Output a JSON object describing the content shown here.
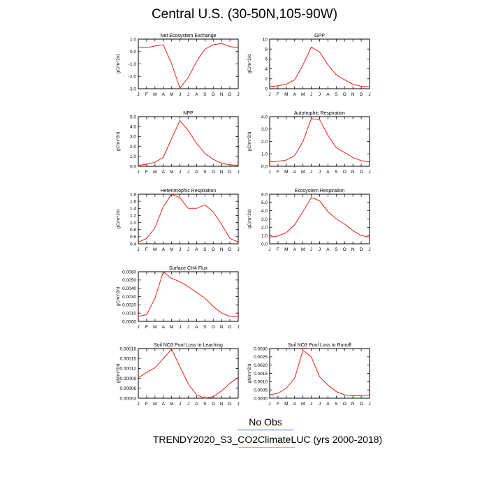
{
  "page": {
    "title": "Central U.S. (30-50N,105-90W)",
    "legend": {
      "obs_label": "No Obs",
      "model_label": "TRENDY2020_S3_CO2ClimateLUC (yrs 2000-2018)",
      "obs_color": "#3d63c7",
      "model_color": "#e8a0a0"
    }
  },
  "chart_data": [
    {
      "type": "line",
      "title": "Net Ecosystem Exchange",
      "ylabel": "gC/m^2/d",
      "x": [
        "J",
        "F",
        "M",
        "A",
        "M",
        "J",
        "J",
        "A",
        "S",
        "O",
        "N",
        "D",
        "J"
      ],
      "ylim": [
        -3.0,
        1.0
      ],
      "yticks": [
        "1.0",
        "0.0",
        "-1.0",
        "-2.0",
        "-3.0"
      ],
      "ytick_values": [
        1.0,
        0.0,
        -1.0,
        -2.0,
        -3.0
      ],
      "series": [
        {
          "color": "#e8201c",
          "values": [
            0.3,
            0.3,
            0.45,
            0.55,
            -1.0,
            -2.95,
            -2.1,
            -0.8,
            0.2,
            0.55,
            0.65,
            0.4,
            0.3
          ]
        }
      ]
    },
    {
      "type": "line",
      "title": "GPP",
      "ylabel": "gC/m^2/d",
      "x": [
        "J",
        "F",
        "M",
        "A",
        "M",
        "J",
        "J",
        "A",
        "S",
        "O",
        "N",
        "D",
        "J"
      ],
      "ylim": [
        0,
        10
      ],
      "yticks": [
        "10",
        "8",
        "6",
        "4",
        "2",
        "0"
      ],
      "ytick_values": [
        10,
        8,
        6,
        4,
        2,
        0
      ],
      "series": [
        {
          "color": "#e8201c",
          "values": [
            0.4,
            0.6,
            0.9,
            1.8,
            4.8,
            8.4,
            7.4,
            4.8,
            2.8,
            1.8,
            0.9,
            0.5,
            0.4
          ]
        }
      ]
    },
    {
      "type": "line",
      "title": "NPP",
      "ylabel": "gC/m^2/d",
      "x": [
        "J",
        "F",
        "M",
        "A",
        "M",
        "J",
        "J",
        "A",
        "S",
        "O",
        "N",
        "D",
        "J"
      ],
      "ylim": [
        0.0,
        5.0
      ],
      "yticks": [
        "5.0",
        "4.0",
        "3.0",
        "2.0",
        "1.0",
        "0.0"
      ],
      "ytick_values": [
        5.0,
        4.0,
        3.0,
        2.0,
        1.0,
        0.0
      ],
      "series": [
        {
          "color": "#e8201c",
          "values": [
            0.1,
            0.2,
            0.4,
            0.9,
            2.8,
            4.6,
            3.6,
            2.3,
            1.3,
            0.7,
            0.3,
            0.15,
            0.1
          ]
        }
      ]
    },
    {
      "type": "line",
      "title": "Autotrophic Respiration",
      "ylabel": "gC/m^2/d",
      "x": [
        "J",
        "F",
        "M",
        "A",
        "M",
        "J",
        "J",
        "A",
        "S",
        "O",
        "N",
        "D",
        "J"
      ],
      "ylim": [
        0.0,
        4.0
      ],
      "yticks": [
        "4.0",
        "3.0",
        "2.0",
        "1.0",
        "0.0"
      ],
      "ytick_values": [
        4.0,
        3.0,
        2.0,
        1.0,
        0.0
      ],
      "series": [
        {
          "color": "#e8201c",
          "values": [
            0.35,
            0.4,
            0.5,
            0.85,
            2.0,
            3.85,
            3.75,
            2.5,
            1.5,
            1.1,
            0.7,
            0.45,
            0.35
          ]
        }
      ]
    },
    {
      "type": "line",
      "title": "Heterotrophic Respiration",
      "ylabel": "gC/m^2/d",
      "x": [
        "J",
        "F",
        "M",
        "A",
        "M",
        "J",
        "J",
        "A",
        "S",
        "O",
        "N",
        "D",
        "J"
      ],
      "ylim": [
        0.4,
        1.8
      ],
      "yticks": [
        "1.8",
        "1.6",
        "1.4",
        "1.2",
        "1.0",
        "0.8",
        "0.6",
        "0.4"
      ],
      "ytick_values": [
        1.8,
        1.6,
        1.4,
        1.2,
        1.0,
        0.8,
        0.6,
        0.4
      ],
      "series": [
        {
          "color": "#e8201c",
          "values": [
            0.45,
            0.55,
            0.85,
            1.45,
            1.8,
            1.7,
            1.4,
            1.4,
            1.5,
            1.3,
            0.95,
            0.55,
            0.45
          ]
        }
      ]
    },
    {
      "type": "line",
      "title": "Ecosystem Respiration",
      "ylabel": "gC/m^2/d",
      "x": [
        "J",
        "F",
        "M",
        "A",
        "M",
        "J",
        "J",
        "A",
        "S",
        "O",
        "N",
        "D",
        "J"
      ],
      "ylim": [
        0.0,
        6.0
      ],
      "yticks": [
        "6.0",
        "5.0",
        "4.0",
        "3.0",
        "2.0",
        "1.0",
        "0.0"
      ],
      "ytick_values": [
        6.0,
        5.0,
        4.0,
        3.0,
        2.0,
        1.0,
        0.0
      ],
      "series": [
        {
          "color": "#e8201c",
          "values": [
            0.8,
            0.95,
            1.35,
            2.3,
            3.9,
            5.6,
            5.2,
            3.9,
            3.0,
            2.4,
            1.6,
            1.0,
            0.8
          ]
        }
      ]
    },
    {
      "type": "line",
      "title": "Surface CH4 Flux",
      "ylabel": "gC/m^2/d",
      "x": [
        "J",
        "F",
        "M",
        "A",
        "M",
        "J",
        "J",
        "A",
        "S",
        "O",
        "N",
        "D",
        "J"
      ],
      "ylim": [
        0.0,
        0.006
      ],
      "yticks": [
        "0.0060",
        "0.0050",
        "0.0040",
        "0.0030",
        "0.0020",
        "0.0010",
        "0.0000"
      ],
      "ytick_values": [
        0.006,
        0.005,
        0.004,
        0.003,
        0.002,
        0.001,
        0.0
      ],
      "series": [
        {
          "color": "#e8201c",
          "values": [
            0.0006,
            0.0008,
            0.0028,
            0.006,
            0.0052,
            0.0048,
            0.0042,
            0.0035,
            0.0028,
            0.0018,
            0.001,
            0.0006,
            0.0006
          ]
        }
      ]
    },
    null,
    {
      "type": "line",
      "title": "Soil NO3 Pool Loss to Leaching",
      "ylabel": "gN/m^2/d",
      "x": [
        "J",
        "F",
        "M",
        "A",
        "M",
        "J",
        "J",
        "A",
        "S",
        "O",
        "N",
        "D",
        "J"
      ],
      "ylim": [
        3e-05,
        0.00018
      ],
      "yticks": [
        "0.00018",
        "0.00015",
        "0.00012",
        "0.00009",
        "0.00006",
        "0.00003"
      ],
      "ytick_values": [
        0.00018,
        0.00015,
        0.00012,
        9e-05,
        6e-05,
        3e-05
      ],
      "series": [
        {
          "color": "#e8201c",
          "values": [
            9.2e-05,
            0.000108,
            0.000122,
            0.00015,
            0.000178,
            0.000125,
            7.3e-05,
            4e-05,
            3e-05,
            3.5e-05,
            5.2e-05,
            7.5e-05,
            9.3e-05
          ]
        }
      ]
    },
    {
      "type": "line",
      "title": "Soil NO3 Pool Loss to Runoff",
      "ylabel": "gN/m^2/d",
      "x": [
        "J",
        "F",
        "M",
        "A",
        "M",
        "J",
        "J",
        "A",
        "S",
        "O",
        "N",
        "D",
        "J"
      ],
      "ylim": [
        0.0,
        0.003
      ],
      "yticks": [
        "0.0030",
        "0.0025",
        "0.0020",
        "0.0015",
        "0.0010",
        "0.0005",
        "0.0000"
      ],
      "ytick_values": [
        0.003,
        0.0025,
        0.002,
        0.0015,
        0.001,
        0.0005,
        0.0
      ],
      "series": [
        {
          "color": "#e8201c",
          "values": [
            0.0002,
            0.0003,
            0.0006,
            0.0012,
            0.0029,
            0.0025,
            0.0013,
            0.0008,
            0.0004,
            0.0002,
            0.00015,
            0.00015,
            0.0002
          ]
        }
      ]
    }
  ]
}
